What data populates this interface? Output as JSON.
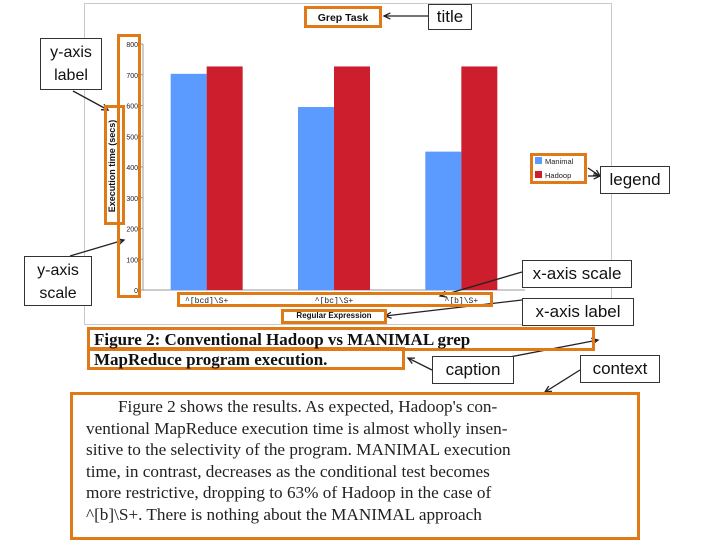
{
  "chart_data": {
    "type": "bar",
    "title": "Grep Task",
    "xlabel": "Regular Expression",
    "ylabel": "Execution time (secs)",
    "ylim": [
      0,
      800
    ],
    "yticks": [
      "0",
      "100",
      "200",
      "300",
      "400",
      "500",
      "600",
      "700",
      "800"
    ],
    "categories": [
      "^[bcd]\\S+",
      "^[bc]\\S+",
      "^[b]\\S+"
    ],
    "series": [
      {
        "name": "Manimal",
        "values": [
          703,
          595,
          450
        ],
        "color": "#5b9bff"
      },
      {
        "name": "Hadoop",
        "values": [
          727,
          727,
          727
        ],
        "color": "#cc1e2c"
      }
    ],
    "legend": "right",
    "grid": false
  },
  "caption": {
    "line1": "Figure 2:  Conventional Hadoop vs MANIMAL grep",
    "line2": "MapReduce program execution."
  },
  "context": [
    "Figure 2 shows the results.  As expected, Hadoop's con-",
    "ventional MapReduce execution time is almost wholly insen-",
    "sitive to the selectivity of the program.  MANIMAL execution",
    "time, in contrast, decreases as the conditional test becomes",
    "more restrictive, dropping to 63% of Hadoop in the case of",
    "^[b]\\S+.  There is nothing about the MANIMAL approach"
  ],
  "annotations": {
    "title": "title",
    "y_axis_label": "y-axis label",
    "legend": "legend",
    "y_axis_scale": "y-axis scale",
    "x_axis_scale": "x-axis scale",
    "x_axis_label": "x-axis label",
    "caption": "caption",
    "context": "context"
  },
  "colors": {
    "highlight": "#e07a16",
    "frame": "#c9c9c9"
  }
}
